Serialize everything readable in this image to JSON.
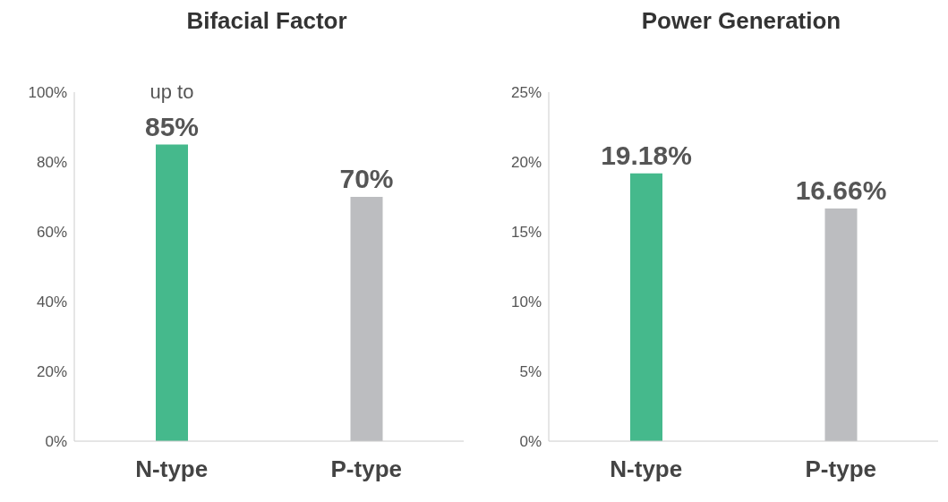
{
  "chart_data": [
    {
      "type": "bar",
      "title": "Bifacial Factor",
      "categories": [
        "N-type",
        "P-type"
      ],
      "values": [
        85,
        70
      ],
      "colors": [
        "#45b98c",
        "#bcbdc0"
      ],
      "ylim": [
        0,
        100
      ],
      "yticks": [
        {
          "value": 0,
          "label": "0%"
        },
        {
          "value": 20,
          "label": "20%"
        },
        {
          "value": 40,
          "label": "40%"
        },
        {
          "value": 60,
          "label": "60%"
        },
        {
          "value": 80,
          "label": "80%"
        },
        {
          "value": 100,
          "label": "100%"
        }
      ],
      "value_labels": [
        "85%",
        "70%"
      ],
      "annotations": [
        {
          "text": "up to",
          "x": "N-type",
          "y": 85
        }
      ],
      "grid": false,
      "legend": false
    },
    {
      "type": "bar",
      "title": "Power Generation",
      "categories": [
        "N-type",
        "P-type"
      ],
      "values": [
        19.18,
        16.66
      ],
      "colors": [
        "#45b98c",
        "#bcbdc0"
      ],
      "ylim": [
        0,
        25
      ],
      "yticks": [
        {
          "value": 0,
          "label": "0%"
        },
        {
          "value": 5,
          "label": "5%"
        },
        {
          "value": 10,
          "label": "10%"
        },
        {
          "value": 15,
          "label": "15%"
        },
        {
          "value": 20,
          "label": "20%"
        },
        {
          "value": 25,
          "label": "25%"
        }
      ],
      "value_labels": [
        "19.18%",
        "16.66%"
      ],
      "grid": false,
      "legend": false
    }
  ]
}
